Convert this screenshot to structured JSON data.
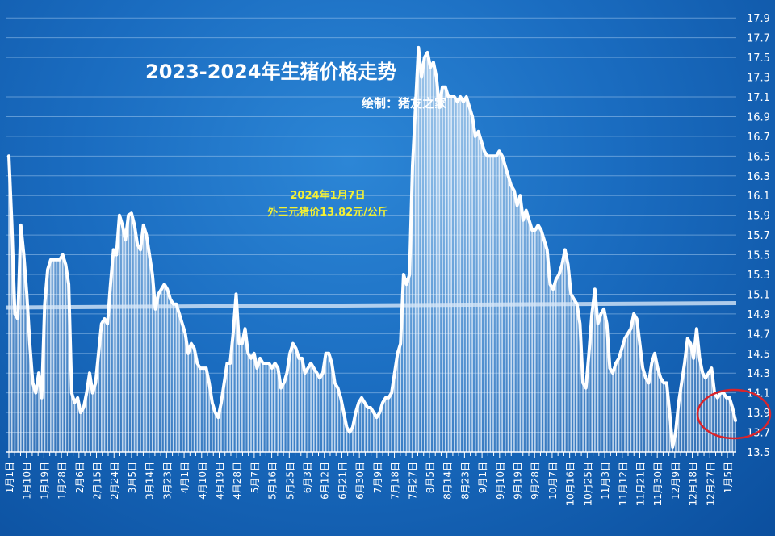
{
  "chart_data": {
    "type": "area",
    "title": "2023-2024年生猪价格走势",
    "subtitle": "绘制：猪友之家",
    "annotation": {
      "line1": "2024年1月7日",
      "line2": "外三元猪价13.82元/公斤"
    },
    "ylim": [
      13.5,
      18.0
    ],
    "yticks": [
      "13.5",
      "13.7",
      "13.9",
      "14.1",
      "14.3",
      "14.5",
      "14.7",
      "14.9",
      "15.1",
      "15.3",
      "15.5",
      "15.7",
      "15.9",
      "16.1",
      "16.3",
      "16.5",
      "16.7",
      "16.9",
      "17.1",
      "17.3",
      "17.5",
      "17.7",
      "17.9"
    ],
    "xtick_labels": [
      "1月1日",
      "1月10日",
      "1月19日",
      "1月28日",
      "2月6日",
      "2月15日",
      "2月24日",
      "3月5日",
      "3月14日",
      "3月23日",
      "4月1日",
      "4月10日",
      "4月19日",
      "4月28日",
      "5月7日",
      "5月16日",
      "5月25日",
      "6月3日",
      "6月12日",
      "6月21日",
      "6月30日",
      "7月9日",
      "7月18日",
      "7月27日",
      "8月5日",
      "8月14日",
      "8月23日",
      "9月1日",
      "9月10日",
      "9月19日",
      "9月28日",
      "10月7日",
      "10月16日",
      "10月25日",
      "11月3日",
      "11月12日",
      "11月21日",
      "11月30日",
      "12月9日",
      "12月18日",
      "12月27日",
      "1月5日"
    ],
    "series": [
      {
        "values": [
          16.5,
          15.8,
          14.9,
          14.85,
          15.8,
          15.5,
          15.1,
          14.6,
          14.2,
          14.1,
          14.3,
          14.05,
          15.0,
          15.35,
          15.45,
          15.45,
          15.45,
          15.45,
          15.5,
          15.4,
          15.2,
          14.1,
          14.0,
          14.05,
          13.9,
          13.95,
          14.1,
          14.3,
          14.1,
          14.2,
          14.5,
          14.8,
          14.85,
          14.8,
          15.2,
          15.55,
          15.5,
          15.9,
          15.8,
          15.65,
          15.9,
          15.92,
          15.8,
          15.6,
          15.55,
          15.8,
          15.7,
          15.5,
          15.3,
          14.95,
          15.1,
          15.15,
          15.2,
          15.15,
          15.05,
          15.0,
          15.0,
          14.9,
          14.8,
          14.7,
          14.5,
          14.6,
          14.55,
          14.4,
          14.35,
          14.35,
          14.35,
          14.2,
          14.0,
          13.9,
          13.85,
          14.0,
          14.2,
          14.4,
          14.4,
          14.7,
          15.1,
          14.6,
          14.6,
          14.75,
          14.5,
          14.45,
          14.5,
          14.35,
          14.45,
          14.4,
          14.4,
          14.4,
          14.35,
          14.4,
          14.35,
          14.15,
          14.2,
          14.3,
          14.5,
          14.6,
          14.55,
          14.45,
          14.45,
          14.3,
          14.35,
          14.4,
          14.35,
          14.3,
          14.25,
          14.3,
          14.5,
          14.5,
          14.4,
          14.2,
          14.15,
          14.05,
          13.9,
          13.75,
          13.7,
          13.75,
          13.9,
          14.0,
          14.05,
          14.0,
          13.95,
          13.95,
          13.9,
          13.85,
          13.9,
          14.0,
          14.05,
          14.05,
          14.1,
          14.3,
          14.5,
          14.6,
          15.3,
          15.2,
          15.3,
          16.4,
          17.0,
          17.6,
          17.3,
          17.5,
          17.55,
          17.4,
          17.45,
          17.3,
          17.0,
          17.2,
          17.2,
          17.1,
          17.1,
          17.1,
          17.05,
          17.1,
          17.05,
          17.1,
          17.0,
          16.9,
          16.7,
          16.75,
          16.65,
          16.55,
          16.5,
          16.5,
          16.5,
          16.5,
          16.55,
          16.5,
          16.4,
          16.3,
          16.2,
          16.15,
          16.0,
          16.1,
          15.85,
          15.95,
          15.85,
          15.75,
          15.75,
          15.8,
          15.75,
          15.65,
          15.55,
          15.2,
          15.15,
          15.25,
          15.3,
          15.4,
          15.55,
          15.4,
          15.1,
          15.05,
          15.0,
          14.8,
          14.2,
          14.15,
          14.5,
          14.9,
          15.15,
          14.8,
          14.9,
          14.95,
          14.8,
          14.35,
          14.3,
          14.4,
          14.45,
          14.55,
          14.65,
          14.7,
          14.75,
          14.9,
          14.85,
          14.6,
          14.35,
          14.25,
          14.2,
          14.4,
          14.5,
          14.35,
          14.25,
          14.2,
          14.2,
          13.9,
          13.55,
          13.7,
          14.0,
          14.2,
          14.4,
          14.65,
          14.6,
          14.45,
          14.75,
          14.45,
          14.3,
          14.25,
          14.3,
          14.35,
          14.1,
          14.05,
          14.1,
          14.1,
          14.05,
          14.05,
          13.95,
          13.82
        ]
      }
    ],
    "grid": true,
    "trendline": true
  }
}
